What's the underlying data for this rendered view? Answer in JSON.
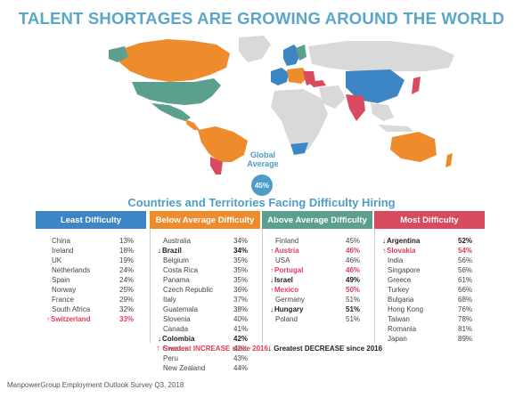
{
  "title": "TALENT SHORTAGES ARE GROWING AROUND THE WORLD",
  "subtitle": "Countries and Territories Facing Difficulty Hiring",
  "global": {
    "label_line1": "Global",
    "label_line2": "Average",
    "value": "45%"
  },
  "colors": {
    "least": "#3c86c6",
    "below": "#ee8b2c",
    "above": "#5b9f8e",
    "most": "#d84a5e",
    "other_land": "#d9d9d9",
    "title": "#5aa6c9",
    "increase": "#e23b5c",
    "decrease": "#222222"
  },
  "legend": {
    "increase_arrow": "↑",
    "increase_label": "Greatest INCREASE since 2016",
    "decrease_arrow": "↓",
    "decrease_label": "Greatest DECREASE since 2016"
  },
  "source": "ManpowerGroup Employment Outlook Survey Q3, 2018",
  "chart_data": {
    "type": "table",
    "columns": [
      {
        "header": "Least Difficulty",
        "color": "#3c86c6",
        "rows": [
          {
            "country": "China",
            "value": "13%",
            "trend": ""
          },
          {
            "country": "Ireland",
            "value": "18%",
            "trend": ""
          },
          {
            "country": "UK",
            "value": "19%",
            "trend": ""
          },
          {
            "country": "Netherlands",
            "value": "24%",
            "trend": ""
          },
          {
            "country": "Spain",
            "value": "24%",
            "trend": ""
          },
          {
            "country": "Norway",
            "value": "25%",
            "trend": ""
          },
          {
            "country": "France",
            "value": "29%",
            "trend": ""
          },
          {
            "country": "South Africa",
            "value": "32%",
            "trend": ""
          },
          {
            "country": "Switzerland",
            "value": "33%",
            "trend": "increase"
          }
        ]
      },
      {
        "header": "Below Average Difficulty",
        "color": "#ee8b2c",
        "rows": [
          {
            "country": "Australia",
            "value": "34%",
            "trend": ""
          },
          {
            "country": "Brazil",
            "value": "34%",
            "trend": "decrease"
          },
          {
            "country": "Belgium",
            "value": "35%",
            "trend": ""
          },
          {
            "country": "Costa Rica",
            "value": "35%",
            "trend": ""
          },
          {
            "country": "Panama",
            "value": "35%",
            "trend": ""
          },
          {
            "country": "Czech Republic",
            "value": "36%",
            "trend": ""
          },
          {
            "country": "Italy",
            "value": "37%",
            "trend": ""
          },
          {
            "country": "Guatemala",
            "value": "38%",
            "trend": ""
          },
          {
            "country": "Slovenia",
            "value": "40%",
            "trend": ""
          },
          {
            "country": "Canada",
            "value": "41%",
            "trend": ""
          },
          {
            "country": "Colombia",
            "value": "42%",
            "trend": "decrease"
          },
          {
            "country": "Sweden",
            "value": "42%",
            "trend": ""
          },
          {
            "country": "Peru",
            "value": "43%",
            "trend": ""
          },
          {
            "country": "New Zealand",
            "value": "44%",
            "trend": ""
          }
        ]
      },
      {
        "header": "Above Average Difficulty",
        "color": "#5b9f8e",
        "rows": [
          {
            "country": "Finland",
            "value": "45%",
            "trend": ""
          },
          {
            "country": "Austria",
            "value": "46%",
            "trend": "increase"
          },
          {
            "country": "USA",
            "value": "46%",
            "trend": ""
          },
          {
            "country": "Portugal",
            "value": "46%",
            "trend": "increase"
          },
          {
            "country": "Israel",
            "value": "49%",
            "trend": "decrease"
          },
          {
            "country": "Mexico",
            "value": "50%",
            "trend": "increase"
          },
          {
            "country": "Germany",
            "value": "51%",
            "trend": ""
          },
          {
            "country": "Hungary",
            "value": "51%",
            "trend": "decrease"
          },
          {
            "country": "Poland",
            "value": "51%",
            "trend": ""
          }
        ]
      },
      {
        "header": "Most Difficulty",
        "color": "#d84a5e",
        "rows": [
          {
            "country": "Argentina",
            "value": "52%",
            "trend": "decrease"
          },
          {
            "country": "Slovakia",
            "value": "54%",
            "trend": "increase"
          },
          {
            "country": "India",
            "value": "56%",
            "trend": ""
          },
          {
            "country": "Singapore",
            "value": "56%",
            "trend": ""
          },
          {
            "country": "Greece",
            "value": "61%",
            "trend": ""
          },
          {
            "country": "Turkey",
            "value": "66%",
            "trend": ""
          },
          {
            "country": "Bulgaria",
            "value": "68%",
            "trend": ""
          },
          {
            "country": "Hong Kong",
            "value": "76%",
            "trend": ""
          },
          {
            "country": "Taiwan",
            "value": "78%",
            "trend": ""
          },
          {
            "country": "Romania",
            "value": "81%",
            "trend": ""
          },
          {
            "country": "Japan",
            "value": "89%",
            "trend": ""
          }
        ]
      }
    ]
  }
}
